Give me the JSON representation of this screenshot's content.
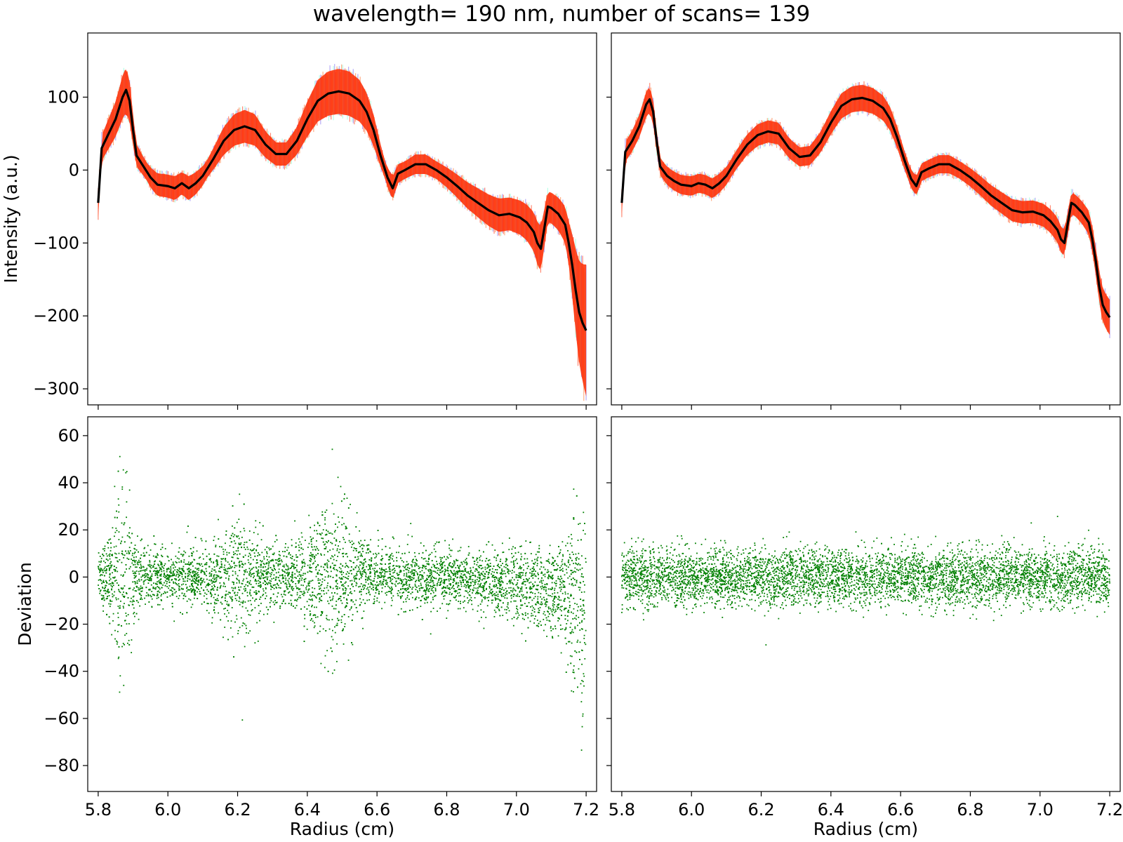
{
  "figure": {
    "title": "wavelength= 190 nm, number of scans= 139"
  },
  "chart_data": [
    {
      "id": "top-left",
      "type": "line",
      "title": "",
      "xlabel": "",
      "ylabel": "Intensity (a.u.)",
      "xlim": [
        5.77,
        7.23
      ],
      "ylim": [
        -322,
        188
      ],
      "xticks": [
        5.8,
        6.0,
        6.2,
        6.4,
        6.6,
        6.8,
        7.0,
        7.2
      ],
      "yticks": [
        100,
        0,
        -100,
        -200,
        -300
      ],
      "show_xtick_labels": false,
      "show_ytick_labels": true,
      "grid": false,
      "series": [
        {
          "role": "mean-curve",
          "color": "#000000",
          "x": [
            5.8,
            5.81,
            5.83,
            5.85,
            5.86,
            5.87,
            5.88,
            5.89,
            5.9,
            5.91,
            5.93,
            5.95,
            5.97,
            6.0,
            6.02,
            6.04,
            6.06,
            6.08,
            6.1,
            6.13,
            6.16,
            6.19,
            6.22,
            6.25,
            6.28,
            6.31,
            6.34,
            6.37,
            6.4,
            6.43,
            6.46,
            6.49,
            6.52,
            6.55,
            6.57,
            6.59,
            6.61,
            6.63,
            6.645,
            6.66,
            6.68,
            6.71,
            6.74,
            6.77,
            6.8,
            6.83,
            6.86,
            6.89,
            6.92,
            6.95,
            6.98,
            7.01,
            7.03,
            7.05,
            7.06,
            7.07,
            7.08,
            7.09,
            7.1,
            7.12,
            7.14,
            7.15,
            7.16,
            7.17,
            7.18,
            7.19,
            7.2
          ],
          "y": [
            -45,
            30,
            50,
            70,
            85,
            100,
            110,
            95,
            55,
            20,
            5,
            -10,
            -20,
            -22,
            -25,
            -18,
            -25,
            -18,
            -8,
            15,
            40,
            55,
            60,
            55,
            35,
            22,
            22,
            40,
            70,
            95,
            105,
            108,
            105,
            95,
            80,
            55,
            20,
            -10,
            -25,
            -5,
            0,
            8,
            8,
            0,
            -10,
            -22,
            -35,
            -45,
            -55,
            -62,
            -60,
            -65,
            -72,
            -85,
            -100,
            -108,
            -80,
            -50,
            -52,
            -60,
            -75,
            -100,
            -130,
            -165,
            -195,
            -210,
            -220
          ]
        }
      ],
      "scan_band": {
        "description_colors": [
          "#ff2a00",
          "#ff6a20",
          "#7fffd4",
          "#7b68ee"
        ],
        "spread_scale": 0.35
      }
    },
    {
      "id": "top-right",
      "type": "line",
      "title": "",
      "xlabel": "",
      "ylabel": "",
      "xlim": [
        5.77,
        7.23
      ],
      "ylim": [
        -322,
        188
      ],
      "xticks": [
        5.8,
        6.0,
        6.2,
        6.4,
        6.6,
        6.8,
        7.0,
        7.2
      ],
      "yticks": [
        100,
        0,
        -100,
        -200,
        -300
      ],
      "show_xtick_labels": false,
      "show_ytick_labels": false,
      "grid": false,
      "series": [
        {
          "role": "mean-curve",
          "color": "#000000",
          "x": [
            5.8,
            5.81,
            5.83,
            5.85,
            5.86,
            5.87,
            5.88,
            5.89,
            5.9,
            5.91,
            5.93,
            5.95,
            5.97,
            6.0,
            6.02,
            6.04,
            6.06,
            6.08,
            6.1,
            6.13,
            6.16,
            6.19,
            6.22,
            6.25,
            6.28,
            6.31,
            6.34,
            6.37,
            6.4,
            6.43,
            6.46,
            6.49,
            6.52,
            6.55,
            6.57,
            6.59,
            6.61,
            6.63,
            6.645,
            6.66,
            6.68,
            6.71,
            6.74,
            6.77,
            6.8,
            6.83,
            6.86,
            6.89,
            6.92,
            6.95,
            6.98,
            7.01,
            7.03,
            7.05,
            7.06,
            7.07,
            7.08,
            7.09,
            7.1,
            7.12,
            7.14,
            7.15,
            7.16,
            7.17,
            7.18,
            7.19,
            7.2
          ],
          "y": [
            -45,
            25,
            40,
            60,
            75,
            90,
            97,
            80,
            40,
            5,
            -8,
            -15,
            -20,
            -22,
            -18,
            -20,
            -25,
            -18,
            -8,
            15,
            35,
            48,
            53,
            50,
            30,
            18,
            20,
            38,
            65,
            88,
            97,
            99,
            95,
            85,
            70,
            45,
            15,
            -12,
            -22,
            -3,
            2,
            8,
            8,
            0,
            -10,
            -22,
            -35,
            -45,
            -55,
            -58,
            -57,
            -62,
            -70,
            -82,
            -95,
            -100,
            -72,
            -45,
            -48,
            -58,
            -72,
            -95,
            -125,
            -160,
            -185,
            -195,
            -202
          ]
        }
      ],
      "scan_band": {
        "description_colors": [
          "#ff2a00",
          "#ff6a20",
          "#7fffd4",
          "#7b68ee"
        ],
        "spread_scale": 0.12
      }
    },
    {
      "id": "bottom-left",
      "type": "scatter",
      "title": "",
      "xlabel": "Radius (cm)",
      "ylabel": "Deviation",
      "xlim": [
        5.77,
        7.23
      ],
      "ylim": [
        -91,
        68
      ],
      "xticks": [
        5.8,
        6.0,
        6.2,
        6.4,
        6.6,
        6.8,
        7.0,
        7.2
      ],
      "xticklabels": [
        "5.8",
        "6.0",
        "6.2",
        "6.4",
        "6.6",
        "6.8",
        "7.0",
        "7.2"
      ],
      "yticks": [
        60,
        40,
        20,
        0,
        -20,
        -40,
        -60,
        -80
      ],
      "show_xtick_labels": true,
      "show_ytick_labels": true,
      "grid": false,
      "series": [
        {
          "role": "residuals",
          "color": "#008000",
          "approx_point_count": 5500,
          "noise_sd": 6,
          "extent_x": [
            5.8,
            7.2
          ],
          "extent_y": [
            -83,
            61
          ]
        }
      ]
    },
    {
      "id": "bottom-right",
      "type": "scatter",
      "title": "",
      "xlabel": "Radius (cm)",
      "ylabel": "",
      "xlim": [
        5.77,
        7.23
      ],
      "ylim": [
        -91,
        68
      ],
      "xticks": [
        5.8,
        6.0,
        6.2,
        6.4,
        6.6,
        6.8,
        7.0,
        7.2
      ],
      "xticklabels": [
        "5.8",
        "6.0",
        "6.2",
        "6.4",
        "6.6",
        "6.8",
        "7.0",
        "7.2"
      ],
      "yticks": [
        60,
        40,
        20,
        0,
        -20,
        -40,
        -60,
        -80
      ],
      "show_xtick_labels": true,
      "show_ytick_labels": false,
      "grid": false,
      "series": [
        {
          "role": "residuals",
          "color": "#008000",
          "approx_point_count": 5500,
          "noise_sd": 6,
          "extent_x": [
            5.8,
            7.2
          ],
          "extent_y": [
            -32,
            36
          ]
        }
      ]
    }
  ]
}
